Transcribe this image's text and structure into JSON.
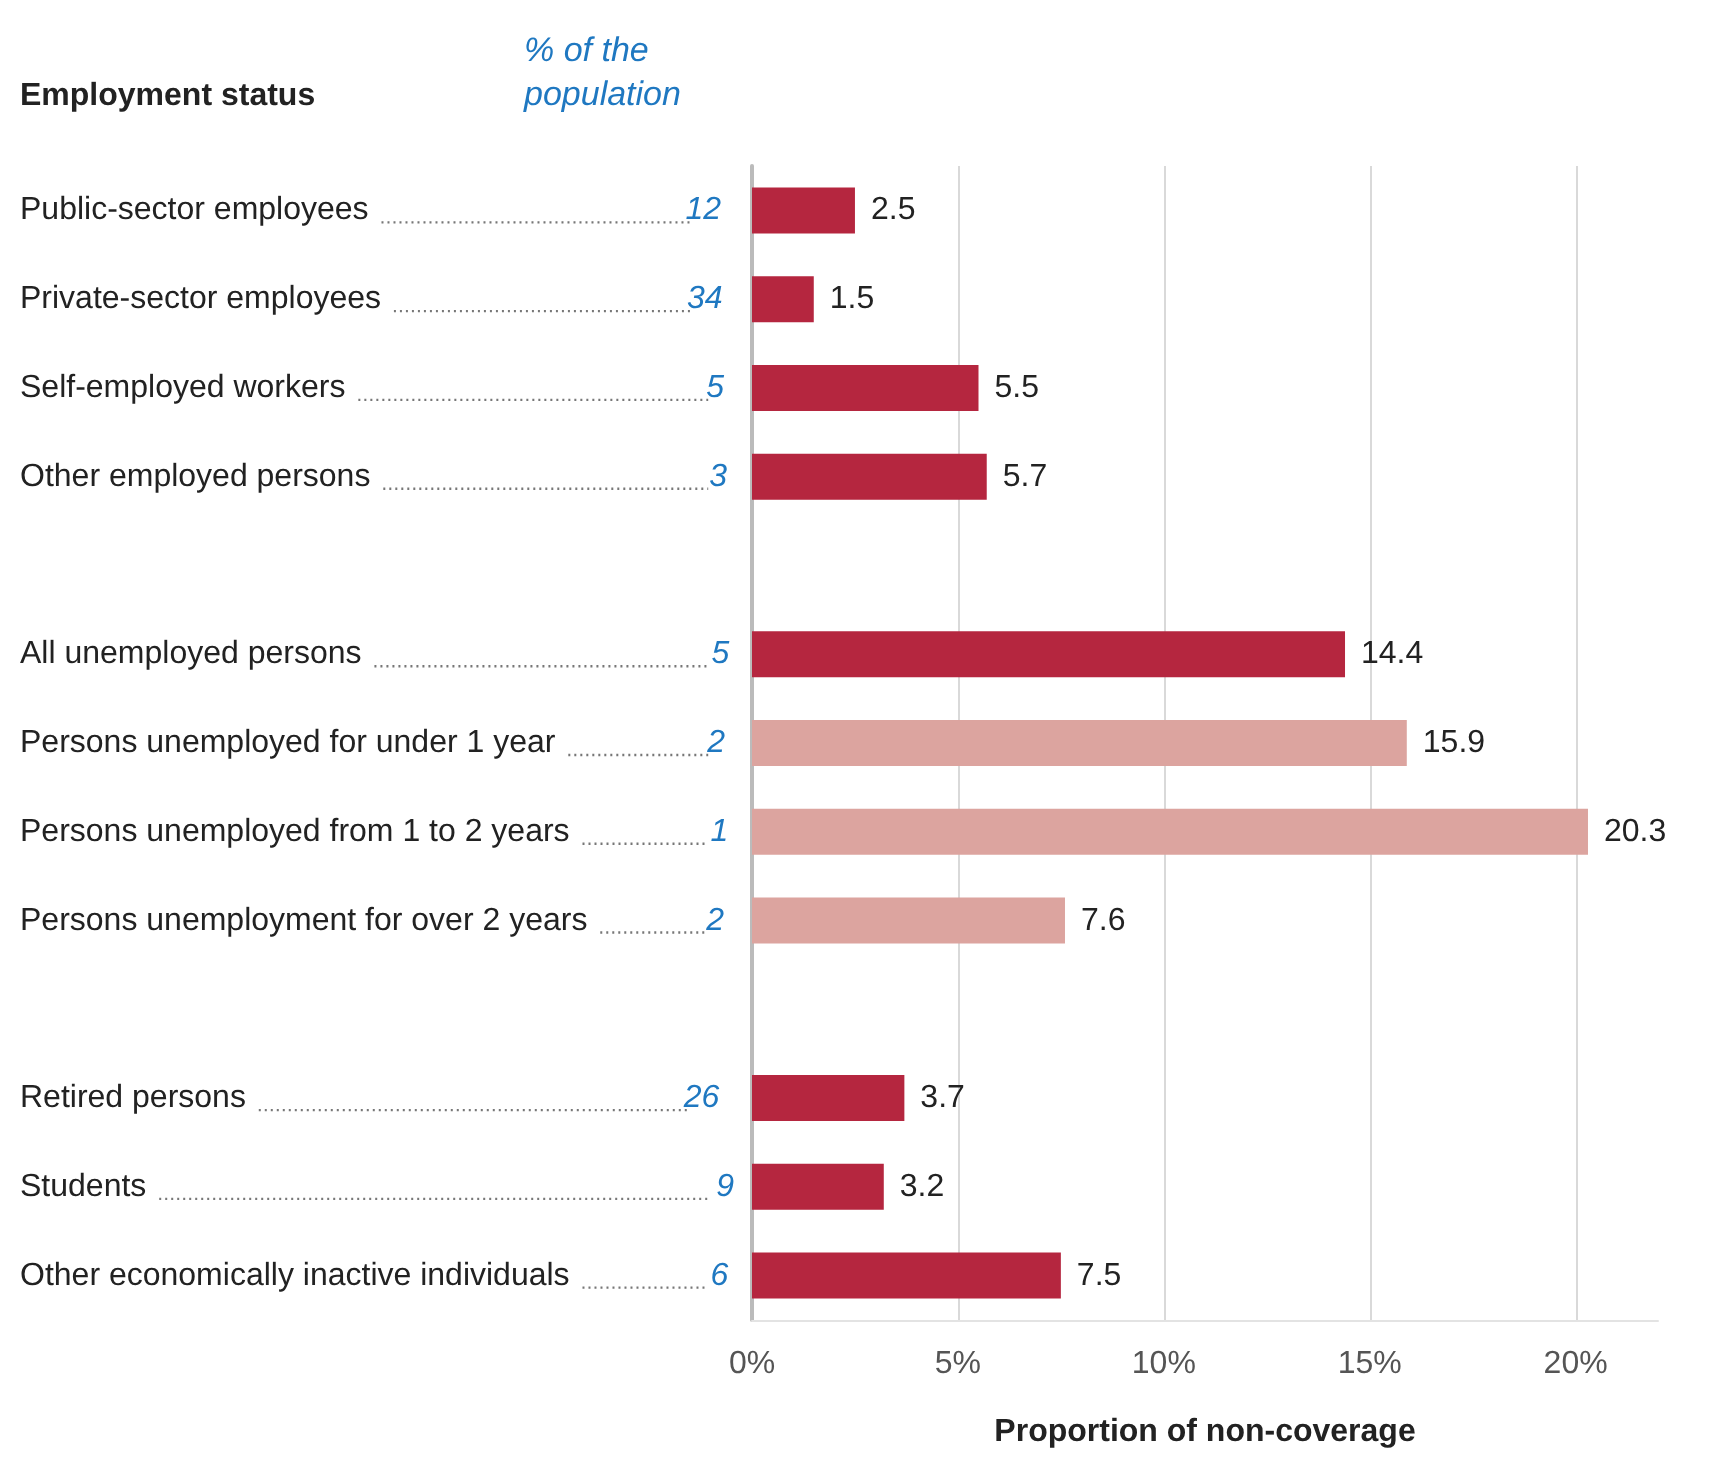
{
  "chart_data": {
    "type": "bar",
    "orientation": "horizontal",
    "ylabel": "Employment status",
    "xlabel": "Proportion of non-coverage",
    "categories": [
      "Public-sector employees",
      "Private-sector employees",
      "Self-employed workers",
      "Other employed persons",
      null,
      "All unemployed persons",
      "Persons unemployed for under 1 year",
      "Persons unemployed from 1 to 2 years",
      "Persons unemployment for over 2 years",
      null,
      "Retired persons",
      "Students",
      "Other economically inactive individuals"
    ],
    "values": [
      2.5,
      1.5,
      5.5,
      5.7,
      null,
      14.4,
      15.9,
      20.3,
      7.6,
      null,
      3.7,
      3.2,
      7.5
    ],
    "colors": [
      "#b5263f",
      "#b5263f",
      "#b5263f",
      "#b5263f",
      "#b5263f",
      "#b5263f",
      "#dca49f",
      "#dca49f",
      "#dca49f",
      "#b5263f",
      "#b5263f",
      "#b5263f",
      "#b5263f"
    ],
    "data_labels": true,
    "xlim": [
      0,
      22
    ],
    "xticks": [
      {
        "value": 0,
        "label": "0%"
      },
      {
        "value": 5,
        "label": "5%"
      },
      {
        "value": 10,
        "label": "10%"
      },
      {
        "value": 15,
        "label": "15%"
      },
      {
        "value": 20,
        "label": "20%"
      }
    ],
    "grid": "x",
    "annotations": [
      "% of the population",
      "12",
      "34",
      "5",
      "3",
      "5",
      "2",
      "1",
      "2",
      "26",
      "9",
      "6"
    ]
  }
}
